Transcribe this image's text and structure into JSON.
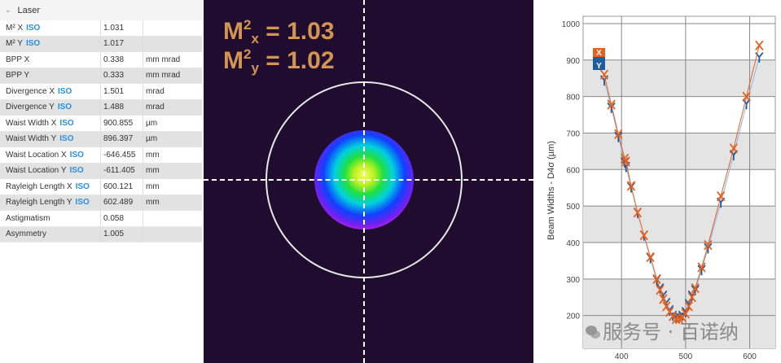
{
  "panel": {
    "title": "Laser",
    "iso": "ISO",
    "rows": [
      {
        "label": "M² X",
        "iso": true,
        "value": "1.031",
        "unit": ""
      },
      {
        "label": "M² Y",
        "iso": true,
        "value": "1.017",
        "unit": ""
      },
      {
        "label": "BPP X",
        "iso": false,
        "value": "0.338",
        "unit": "mm mrad"
      },
      {
        "label": "BPP Y",
        "iso": false,
        "value": "0.333",
        "unit": "mm mrad"
      },
      {
        "label": "Divergence X",
        "iso": true,
        "value": "1.501",
        "unit": "mrad"
      },
      {
        "label": "Divergence Y",
        "iso": true,
        "value": "1.488",
        "unit": "mrad"
      },
      {
        "label": "Waist Width X",
        "iso": true,
        "value": "900.855",
        "unit": "µm"
      },
      {
        "label": "Waist Width Y",
        "iso": true,
        "value": "896.397",
        "unit": "µm"
      },
      {
        "label": "Waist Location X",
        "iso": true,
        "value": "-646.455",
        "unit": "mm"
      },
      {
        "label": "Waist Location Y",
        "iso": true,
        "value": "-611.405",
        "unit": "mm"
      },
      {
        "label": "Rayleigh Length X",
        "iso": true,
        "value": "600.121",
        "unit": "mm"
      },
      {
        "label": "Rayleigh Length Y",
        "iso": true,
        "value": "602.489",
        "unit": "mm"
      },
      {
        "label": "Astigmatism",
        "iso": false,
        "value": "0.058",
        "unit": ""
      },
      {
        "label": "Asymmetry",
        "iso": false,
        "value": "1.005",
        "unit": ""
      }
    ]
  },
  "beam": {
    "m2x_base": "M",
    "m2x_sup": "2",
    "m2x_sub": "x",
    "m2x_val": " = 1.03",
    "m2y_base": "M",
    "m2y_sup": "2",
    "m2y_sub": "y",
    "m2y_val": " = 1.02"
  },
  "watermark": "服务号 · 百诺纳",
  "chart_data": {
    "type": "scatter",
    "ylabel": "Beam Widths - D4σ (µm)",
    "xlabel": "",
    "xlim": [
      340,
      640
    ],
    "ylim": [
      110,
      1020
    ],
    "xticks": [
      "400",
      "500",
      "600"
    ],
    "xtick_values": [
      400,
      500,
      600
    ],
    "yticks": [
      "200",
      "300",
      "400",
      "500",
      "600",
      "700",
      "800",
      "900",
      "1000"
    ],
    "ytick_values": [
      200,
      300,
      400,
      500,
      600,
      700,
      800,
      900,
      1000
    ],
    "legend": [
      "X",
      "Y"
    ],
    "legend_placement": "top-left",
    "colors": {
      "X": "#e8601c",
      "Y": "#1f5e9e",
      "Yline": "#8ab4f0"
    },
    "x": [
      373,
      384,
      395,
      405,
      407,
      415,
      425,
      435,
      445,
      455,
      460,
      465,
      470,
      475,
      480,
      485,
      490,
      495,
      500,
      505,
      510,
      515,
      525,
      535,
      555,
      575,
      595,
      615
    ],
    "series": [
      {
        "name": "X",
        "values": [
          860,
          778,
          697,
          630,
          622,
          555,
          482,
          420,
          360,
          300,
          270,
          245,
          225,
          210,
          198,
          190,
          190,
          195,
          205,
          225,
          250,
          275,
          332,
          393,
          527,
          658,
          800,
          940
        ]
      },
      {
        "name": "Y",
        "values": [
          845,
          770,
          690,
          620,
          608,
          552,
          482,
          420,
          358,
          298,
          275,
          255,
          235,
          215,
          200,
          195,
          195,
          200,
          210,
          232,
          255,
          270,
          325,
          385,
          510,
          640,
          780,
          908
        ]
      }
    ]
  }
}
